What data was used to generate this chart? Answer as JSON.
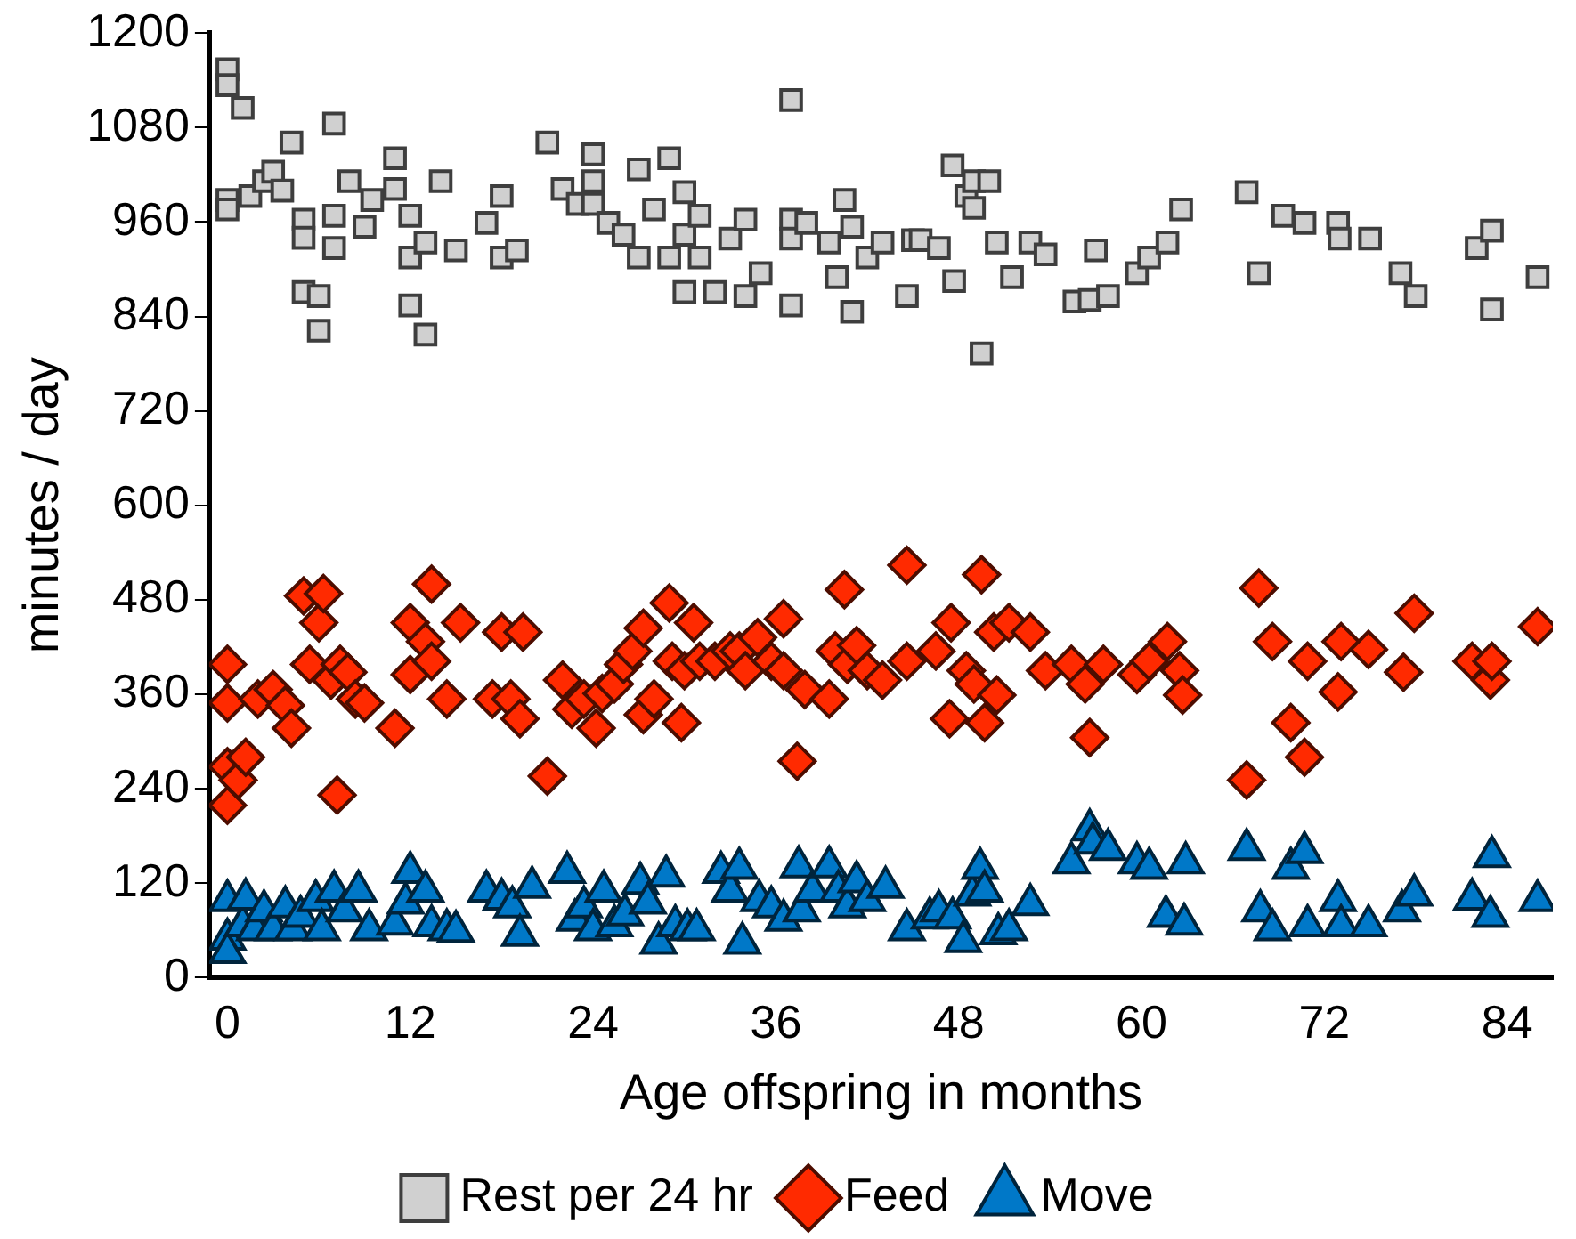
{
  "chart_data": {
    "type": "scatter",
    "xlabel": "Age offspring in months",
    "ylabel": "minutes / day",
    "xlim": [
      -1.2,
      87
    ],
    "xticks": [
      0,
      12,
      24,
      36,
      48,
      60,
      72,
      84
    ],
    "ylim": [
      0,
      1200
    ],
    "yticks": [
      0,
      120,
      240,
      360,
      480,
      600,
      720,
      840,
      960,
      1080,
      1200
    ],
    "grid": false,
    "legend": "bottom",
    "series": [
      {
        "name": "Rest per 24 hr",
        "color": "#d0d0d0",
        "marker": "square",
        "x": [
          0,
          0,
          1,
          0,
          0,
          1.5,
          2.4,
          3,
          3.6,
          4.2,
          5,
          5,
          5,
          6,
          6,
          7,
          7,
          7,
          8,
          9,
          9.5,
          11,
          11,
          12,
          12,
          12,
          13,
          13,
          14,
          15,
          17,
          18,
          18,
          19,
          21,
          22,
          23,
          24,
          24,
          24,
          25,
          26,
          27,
          27,
          28,
          29,
          29,
          30,
          30,
          30,
          31,
          31,
          32,
          33,
          34,
          34,
          35,
          37,
          37,
          37,
          37,
          38,
          39.5,
          40,
          40.5,
          41,
          41,
          42,
          43,
          44.6,
          45,
          45.5,
          46.7,
          47.6,
          47.7,
          48.5,
          49,
          49,
          49.5,
          50,
          50.5,
          51.5,
          52.7,
          53.7,
          55.6,
          56.6,
          57,
          57.8,
          59.7,
          60.5,
          61.7,
          62.6,
          66.9,
          67.7,
          69.3,
          70.7,
          72.9,
          73,
          75,
          77,
          78,
          82,
          83,
          83,
          86
        ],
        "values": [
          1154,
          1134,
          1105,
          988,
          976,
          993,
          1012,
          1024,
          1000,
          1061,
          963,
          940,
          871,
          866,
          822,
          968,
          1085,
          927,
          1012,
          954,
          988,
          1041,
          1002,
          915,
          968,
          854,
          934,
          817,
          1012,
          924,
          959,
          915,
          993,
          924,
          1061,
          1002,
          983,
          1012,
          1046,
          983,
          959,
          944,
          1027,
          915,
          976,
          915,
          1041,
          944,
          998,
          871,
          968,
          915,
          871,
          939,
          963,
          866,
          895,
          963,
          1115,
          939,
          854,
          959,
          934,
          890,
          988,
          954,
          846,
          915,
          934,
          866,
          937,
          937,
          927,
          1032,
          885,
          993,
          1012,
          978,
          793,
          1012,
          934,
          890,
          934,
          919,
          859,
          861,
          924,
          866,
          895,
          915,
          934,
          976,
          998,
          895,
          968,
          959,
          959,
          939,
          939,
          895,
          866,
          927,
          949,
          849,
          890
        ]
      },
      {
        "name": "Feed",
        "color": "#ff2a00",
        "marker": "diamond",
        "x": [
          0,
          0,
          0,
          0,
          0.7,
          1.2,
          2,
          3,
          3.8,
          4.2,
          5,
          5.4,
          6,
          6.3,
          6.8,
          7.2,
          7.4,
          7.9,
          8.4,
          9,
          11,
          12,
          12,
          13,
          13.4,
          13.4,
          14.4,
          15.3,
          17.4,
          18,
          18.6,
          19.2,
          19.4,
          21,
          22,
          22.6,
          23.4,
          24.2,
          24.6,
          25.4,
          26,
          26.6,
          27.3,
          27.3,
          28,
          29,
          29.2,
          29.8,
          30,
          30.6,
          31,
          32,
          33,
          33.6,
          34,
          34.8,
          35.7,
          36.5,
          36.5,
          37.4,
          37.9,
          39.5,
          39.9,
          40.5,
          40.7,
          41.3,
          42,
          43,
          44.6,
          44.6,
          46.5,
          47.4,
          47.5,
          48.5,
          49,
          49.5,
          49.7,
          50.3,
          50.5,
          51.3,
          52.7,
          53.7,
          55.4,
          56.3,
          56.6,
          57.5,
          59.7,
          60.5,
          61.7,
          62.5,
          62.7,
          66.9,
          67.7,
          68.6,
          69.8,
          70.7,
          70.9,
          72.9,
          73.1,
          74.9,
          77.2,
          77.9,
          81.7,
          82.9,
          83,
          86
        ],
        "values": [
          398,
          349,
          268,
          219,
          251,
          280,
          354,
          366,
          346,
          317,
          485,
          398,
          451,
          488,
          378,
          232,
          398,
          388,
          354,
          349,
          317,
          385,
          451,
          427,
          500,
          402,
          354,
          451,
          354,
          439,
          354,
          329,
          439,
          256,
          378,
          341,
          354,
          317,
          361,
          373,
          398,
          415,
          444,
          334,
          354,
          476,
          402,
          324,
          390,
          451,
          402,
          402,
          415,
          415,
          390,
          432,
          402,
          456,
          390,
          275,
          366,
          354,
          415,
          493,
          398,
          422,
          390,
          378,
          524,
          402,
          415,
          329,
          451,
          390,
          373,
          512,
          324,
          439,
          359,
          451,
          439,
          390,
          398,
          373,
          305,
          398,
          385,
          402,
          427,
          390,
          359,
          251,
          495,
          427,
          324,
          280,
          402,
          363,
          427,
          417,
          388,
          463,
          402,
          378,
          402,
          446
        ]
      },
      {
        "name": "Move",
        "color": "#0078c8",
        "marker": "triangle",
        "x": [
          0,
          0,
          0,
          1,
          1.2,
          1.8,
          2.4,
          3,
          3.8,
          4.3,
          4.8,
          5.8,
          6.2,
          7,
          7.7,
          8.6,
          9.3,
          11,
          11.7,
          12,
          13,
          13.4,
          14.4,
          15,
          17,
          18,
          18.7,
          19.2,
          20,
          22.3,
          22.8,
          23.4,
          24,
          24.7,
          25.4,
          26.1,
          27.1,
          27.6,
          28.3,
          28.8,
          29.4,
          30.2,
          30.8,
          32.4,
          33,
          33.6,
          33.8,
          34.9,
          35.7,
          36.5,
          37.5,
          37.7,
          38.4,
          39.5,
          40.1,
          40.7,
          41.3,
          42,
          43.2,
          44.6,
          46.1,
          46.7,
          47.6,
          48.3,
          48.9,
          49.4,
          49.7,
          50.6,
          51.3,
          52.7,
          55.4,
          56.6,
          56.8,
          57.8,
          59.7,
          60.5,
          61.6,
          62.8,
          62.9,
          66.9,
          67.8,
          68.6,
          69.8,
          70.7,
          70.9,
          72.9,
          73.1,
          74.9,
          77.1,
          77.9,
          81.7,
          82.9,
          83,
          86
        ],
        "values": [
          98,
          49,
          32,
          66,
          100,
          61,
          85,
          61,
          90,
          61,
          78,
          98,
          61,
          110,
          85,
          110,
          61,
          68,
          95,
          134,
          110,
          66,
          61,
          59,
          110,
          100,
          90,
          54,
          115,
          134,
          73,
          90,
          61,
          110,
          66,
          80,
          120,
          95,
          44,
          129,
          66,
          61,
          61,
          134,
          110,
          139,
          44,
          98,
          90,
          73,
          141,
          85,
          110,
          141,
          110,
          90,
          122,
          98,
          115,
          61,
          76,
          85,
          76,
          46,
          105,
          139,
          110,
          56,
          61,
          93,
          146,
          188,
          171,
          163,
          146,
          139,
          78,
          68,
          146,
          163,
          85,
          61,
          139,
          159,
          66,
          98,
          66,
          66,
          85,
          105,
          100,
          78,
          154,
          98
        ]
      }
    ]
  }
}
